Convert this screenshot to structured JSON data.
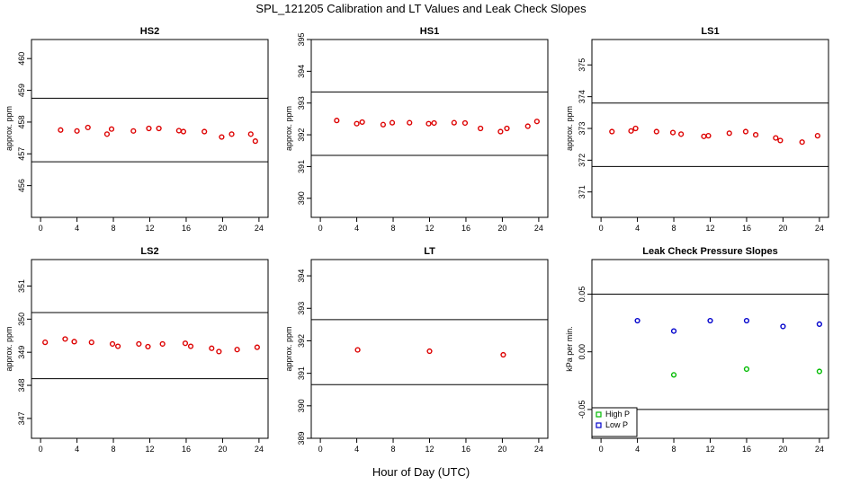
{
  "title": "SPL_121205  Calibration and LT Values and Leak Check Slopes",
  "xlabel": "Hour of Day (UTC)",
  "chart_data": [
    {
      "type": "scatter",
      "title": "HS2",
      "ylabel": "approx. ppm",
      "xlim": [
        -1,
        25
      ],
      "ylim": [
        455,
        460.6
      ],
      "xticks": [
        0,
        4,
        8,
        12,
        16,
        20,
        24
      ],
      "yticks": [
        456,
        457,
        458,
        459,
        460
      ],
      "hlines": [
        458.75,
        456.75
      ],
      "series": [
        {
          "color": "#dd0000",
          "x": [
            2.2,
            4.0,
            5.2,
            7.3,
            7.8,
            10.2,
            11.9,
            13.0,
            15.2,
            15.7,
            18.0,
            19.9,
            21.0,
            23.1,
            23.6
          ],
          "y": [
            457.75,
            457.72,
            457.83,
            457.62,
            457.78,
            457.72,
            457.8,
            457.8,
            457.73,
            457.7,
            457.7,
            457.53,
            457.62,
            457.62,
            457.4
          ]
        }
      ]
    },
    {
      "type": "scatter",
      "title": "HS1",
      "ylabel": "approx. ppm",
      "xlim": [
        -1,
        25
      ],
      "ylim": [
        389.4,
        395
      ],
      "xticks": [
        0,
        4,
        8,
        12,
        16,
        20,
        24
      ],
      "yticks": [
        390,
        391,
        392,
        393,
        394,
        395
      ],
      "hlines": [
        393.35,
        391.35
      ],
      "series": [
        {
          "color": "#dd0000",
          "x": [
            1.8,
            4.0,
            4.6,
            6.9,
            7.9,
            9.8,
            11.9,
            12.5,
            14.7,
            15.9,
            17.6,
            19.8,
            20.5,
            22.8,
            23.8
          ],
          "y": [
            392.45,
            392.35,
            392.4,
            392.32,
            392.38,
            392.38,
            392.35,
            392.37,
            392.38,
            392.37,
            392.2,
            392.1,
            392.2,
            392.27,
            392.42
          ]
        }
      ]
    },
    {
      "type": "scatter",
      "title": "LS1",
      "ylabel": "approx. ppm",
      "xlim": [
        -1,
        25
      ],
      "ylim": [
        370.2,
        375.8
      ],
      "xticks": [
        0,
        4,
        8,
        12,
        16,
        20,
        24
      ],
      "yticks": [
        371,
        372,
        373,
        374,
        375
      ],
      "hlines": [
        373.8,
        371.8
      ],
      "series": [
        {
          "color": "#dd0000",
          "x": [
            1.2,
            3.3,
            3.8,
            6.1,
            7.9,
            8.8,
            11.3,
            11.8,
            14.1,
            15.9,
            17.0,
            19.2,
            19.7,
            22.1,
            23.8
          ],
          "y": [
            372.9,
            372.92,
            373.0,
            372.9,
            372.87,
            372.82,
            372.75,
            372.77,
            372.85,
            372.9,
            372.8,
            372.7,
            372.62,
            372.57,
            372.77
          ]
        }
      ]
    },
    {
      "type": "scatter",
      "title": "LS2",
      "ylabel": "approx. ppm",
      "xlim": [
        -1,
        25
      ],
      "ylim": [
        346.4,
        351.8
      ],
      "xticks": [
        0,
        4,
        8,
        12,
        16,
        20,
        24
      ],
      "yticks": [
        347,
        348,
        349,
        350,
        351
      ],
      "hlines": [
        350.2,
        348.2
      ],
      "series": [
        {
          "color": "#dd0000",
          "x": [
            0.5,
            2.7,
            3.7,
            5.6,
            7.9,
            8.5,
            10.8,
            11.8,
            13.4,
            15.9,
            16.5,
            18.8,
            19.6,
            21.6,
            23.8
          ],
          "y": [
            349.3,
            349.4,
            349.32,
            349.3,
            349.25,
            349.18,
            349.25,
            349.17,
            349.25,
            349.27,
            349.18,
            349.12,
            349.02,
            349.08,
            349.15
          ]
        }
      ]
    },
    {
      "type": "scatter",
      "title": "LT",
      "ylabel": "approx. ppm",
      "xlim": [
        -1,
        25
      ],
      "ylim": [
        389,
        394.5
      ],
      "xticks": [
        0,
        4,
        8,
        12,
        16,
        20,
        24
      ],
      "yticks": [
        389,
        390,
        391,
        392,
        393,
        394
      ],
      "hlines": [
        392.65,
        390.65
      ],
      "series": [
        {
          "color": "#dd0000",
          "x": [
            4.1,
            12.0,
            20.1
          ],
          "y": [
            391.72,
            391.68,
            391.57
          ]
        }
      ]
    },
    {
      "type": "scatter",
      "title": "Leak Check Pressure Slopes",
      "ylabel": "kPa per min.",
      "xlim": [
        -1,
        25
      ],
      "ylim": [
        -0.075,
        0.08
      ],
      "xticks": [
        0,
        4,
        8,
        12,
        16,
        20,
        24
      ],
      "yticks": [
        -0.05,
        0.0,
        0.05
      ],
      "ytick_labels": [
        "-0.05",
        "0.00",
        "0.05"
      ],
      "hlines": [
        0.05,
        -0.05
      ],
      "legend": "bottom-left",
      "series": [
        {
          "name": "High P",
          "color": "#00bb00",
          "x": [
            8.0,
            16.0,
            24.0
          ],
          "y": [
            -0.02,
            -0.015,
            -0.017
          ]
        },
        {
          "name": "Low P",
          "color": "#0000cc",
          "x": [
            4.0,
            8.0,
            12.0,
            16.0,
            20.0,
            24.0
          ],
          "y": [
            0.027,
            0.018,
            0.027,
            0.027,
            0.022,
            0.024
          ]
        }
      ]
    }
  ]
}
